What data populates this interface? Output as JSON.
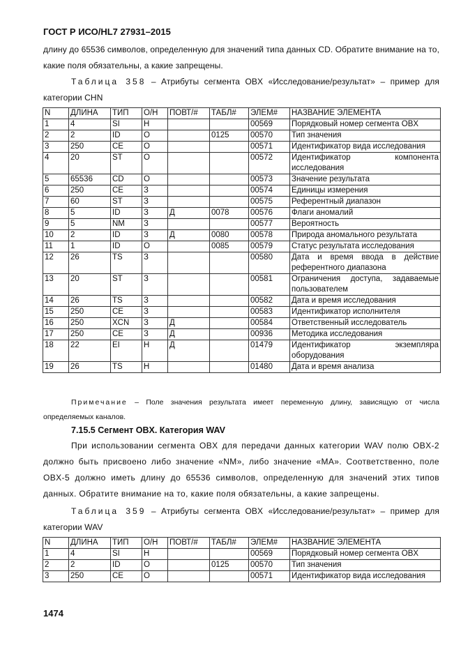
{
  "header": {
    "title": "ГОСТ Р ИСО/HL7 27931–2015"
  },
  "intro": "длину до 65536 символов, определенную для значений типа данных CD. Обратите внимание на то, какие поля обязательны, а какие запрещены.",
  "table1_caption": {
    "label": "Таблица 358",
    "text": " – Атрибуты сегмента OBX «Исследование/результат» – пример для категории CHN"
  },
  "columns": [
    "N",
    "ДЛИНА",
    "ТИП",
    "О/Н",
    "ПОВТ/#",
    "ТАБЛ#",
    "ЭЛЕМ#",
    "НАЗВАНИЕ ЭЛЕМЕНТА"
  ],
  "table1_rows": [
    [
      "1",
      "4",
      "SI",
      "Н",
      "",
      "",
      "00569",
      "Порядковый номер сегмента OBX"
    ],
    [
      "2",
      "2",
      "ID",
      "О",
      "",
      "0125",
      "00570",
      "Тип значения"
    ],
    [
      "3",
      "250",
      "CE",
      "О",
      "",
      "",
      "00571",
      "Идентификатор вида исследования"
    ],
    [
      "4",
      "20",
      "ST",
      "О",
      "",
      "",
      "00572",
      "Идентификатор компонента исследования"
    ],
    [
      "5",
      "65536",
      "CD",
      "О",
      "",
      "",
      "00573",
      "Значение результата"
    ],
    [
      "6",
      "250",
      "CE",
      "З",
      "",
      "",
      "00574",
      "Единицы измерения"
    ],
    [
      "7",
      "60",
      "ST",
      "З",
      "",
      "",
      "00575",
      "Референтный диапазон"
    ],
    [
      "8",
      "5",
      "ID",
      "З",
      "Д",
      "0078",
      "00576",
      "Флаги аномалий"
    ],
    [
      "9",
      "5",
      "NM",
      "З",
      "",
      "",
      "00577",
      "Вероятность"
    ],
    [
      "10",
      "2",
      "ID",
      "З",
      "Д",
      "0080",
      "00578",
      "Природа аномального результата"
    ],
    [
      "11",
      "1",
      "ID",
      "О",
      "",
      "0085",
      "00579",
      "Статус результата исследования"
    ],
    [
      "12",
      "26",
      "TS",
      "З",
      "",
      "",
      "00580",
      "Дата и время ввода в действие референтного диапазона"
    ],
    [
      "13",
      "20",
      "ST",
      "З",
      "",
      "",
      "00581",
      "Ограничения доступа, задаваемые пользователем"
    ],
    [
      "14",
      "26",
      "TS",
      "З",
      "",
      "",
      "00582",
      "Дата и время исследования"
    ],
    [
      "15",
      "250",
      "CE",
      "З",
      "",
      "",
      "00583",
      "Идентификатор исполнителя"
    ],
    [
      "16",
      "250",
      "XCN",
      "З",
      "Д",
      "",
      "00584",
      "Ответственный исследователь"
    ],
    [
      "17",
      "250",
      "CE",
      "З",
      "Д",
      "",
      "00936",
      "Методика исследования"
    ],
    [
      "18",
      "22",
      "EI",
      "Н",
      "Д",
      "",
      "01479",
      "Идентификатор экземпляра оборудования"
    ],
    [
      "19",
      "26",
      "TS",
      "Н",
      "",
      "",
      "01480",
      "Дата и время анализа"
    ]
  ],
  "note": {
    "label": "Примечание",
    "text": " – Поле значения результата имеет переменную длину, зависящую от числа определяемых каналов."
  },
  "section_title": "7.15.5 Сегмент OBX. Категория WAV",
  "section_para": "При использовании сегмента OBX для передачи данных категории WAV полю OBX-2 должно быть присвоено либо значение «NM», либо значение «MA». Соответственно, поле OBX-5 должно иметь длину до 65536 символов, определенную для значений этих типов данных. Обратите внимание на то, какие поля обязательны, а какие запрещены.",
  "table2_caption": {
    "label": "Таблица 359",
    "text": " – Атрибуты сегмента OBX «Исследование/результат» – пример для категории WAV"
  },
  "table2_rows": [
    [
      "1",
      "4",
      "SI",
      "Н",
      "",
      "",
      "00569",
      "Порядковый номер сегмента OBX"
    ],
    [
      "2",
      "2",
      "ID",
      "О",
      "",
      "0125",
      "00570",
      "Тип значения"
    ],
    [
      "3",
      "250",
      "CE",
      "О",
      "",
      "",
      "00571",
      "Идентификатор вида исследования"
    ]
  ],
  "page_number": "1474"
}
